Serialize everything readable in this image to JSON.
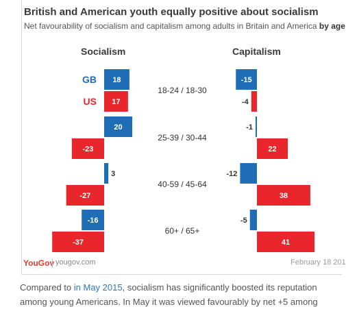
{
  "header": {
    "title": "British and American youth equally positive about socialism",
    "subtitle_main": "Net favourability of socialism and capitalism among adults in Britain and America ",
    "subtitle_bold": "by age"
  },
  "chart_data": {
    "type": "bar",
    "categories": [
      "18-24 / 18-30",
      "25-39 / 30-44",
      "40-59 / 45-64",
      "60+ / 65+"
    ],
    "panels": [
      {
        "title": "Socialism",
        "series": [
          {
            "name": "GB",
            "color": "#1f6db5",
            "values": [
              18,
              20,
              3,
              -16
            ]
          },
          {
            "name": "US",
            "color": "#e8262b",
            "values": [
              17,
              -23,
              -27,
              -37
            ]
          }
        ]
      },
      {
        "title": "Capitalism",
        "series": [
          {
            "name": "GB",
            "color": "#1f6db5",
            "values": [
              -15,
              -1,
              -12,
              -5
            ]
          },
          {
            "name": "US",
            "color": "#e8262b",
            "values": [
              -4,
              22,
              38,
              41
            ]
          }
        ]
      }
    ],
    "legend": "inline-left"
  },
  "footer": {
    "logo": "YouGov",
    "url": "yougov.com",
    "date": "February 18 201"
  },
  "article": {
    "text_before_link": "Compared to ",
    "link_text": "in May 2015",
    "text_after_link": ", socialism has significantly boosted its reputation",
    "line2": "among young Americans. In May it was viewed favourably by net +5 among"
  }
}
